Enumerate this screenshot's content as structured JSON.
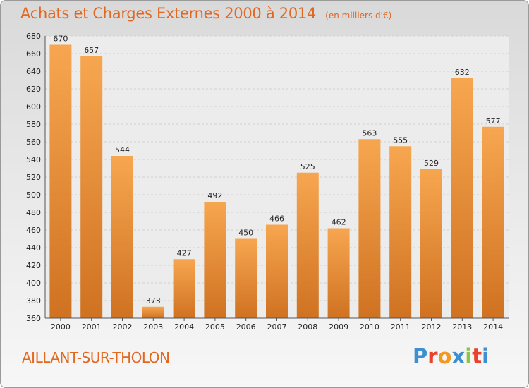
{
  "header": {
    "title": "Achats et Charges Externes 2000 à 2014",
    "unit": "(en milliers d'€)"
  },
  "footer": {
    "city": "AILLANT-SUR-THOLON",
    "logo": [
      "P",
      "r",
      "o",
      "x",
      "i",
      "t",
      "i"
    ],
    "logo_colors": [
      "#3d8fd1",
      "#e8412c",
      "#f29a1f",
      "#3d8fd1",
      "#8dc63f",
      "#e8412c",
      "#3d8fd1"
    ]
  },
  "colors": {
    "bar_light": "#f7a650",
    "bar_dark": "#cf7221",
    "accent": "#e2671f"
  },
  "chart_data": {
    "type": "bar",
    "title": "Achats et Charges Externes 2000 à 2014",
    "subtitle": "(en milliers d'€)",
    "categories": [
      "2000",
      "2001",
      "2002",
      "2003",
      "2004",
      "2005",
      "2006",
      "2007",
      "2008",
      "2009",
      "2010",
      "2011",
      "2012",
      "2013",
      "2014"
    ],
    "values": [
      670,
      657,
      544,
      373,
      427,
      492,
      450,
      466,
      525,
      462,
      563,
      555,
      529,
      632,
      577
    ],
    "ylim": [
      360,
      680
    ],
    "yticks": [
      360,
      380,
      400,
      420,
      440,
      460,
      480,
      500,
      520,
      540,
      560,
      580,
      600,
      620,
      640,
      660,
      680
    ],
    "grid": true,
    "data_labels": true
  }
}
